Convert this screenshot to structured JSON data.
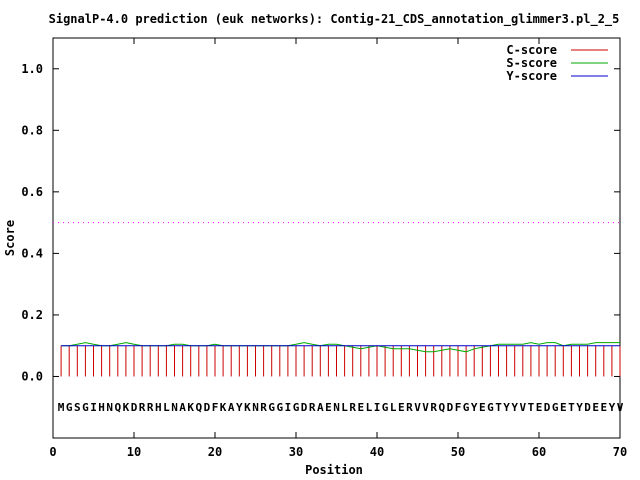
{
  "chart_data": {
    "type": "line",
    "title": "SignalP-4.0 prediction (euk networks): Contig-21_CDS_annotation_glimmer3.pl_2_5",
    "xlabel": "Position",
    "ylabel": "Score",
    "xlim": [
      0,
      70
    ],
    "ylim": [
      -0.2,
      1.1
    ],
    "xticks": [
      0,
      10,
      20,
      30,
      40,
      50,
      60,
      70
    ],
    "yticks": [
      0.0,
      0.2,
      0.4,
      0.6,
      0.8,
      1.0
    ],
    "ytick_labels": [
      "0.0",
      "0.2",
      "0.4",
      "0.6",
      "0.8",
      "1.0"
    ],
    "grid": false,
    "legend_position": "top-right",
    "threshold": {
      "value": 0.5,
      "color": "#ff00ff",
      "style": "dotted"
    },
    "sequence": "MGSGIHNQKDRRHLNAKQDFKAYKNRGGIGDRAENLRELIGLERVVRQDFGYEGTYYVTEDGETYDEEYV",
    "series": [
      {
        "name": "C-score",
        "color": "#cc0000",
        "style": "impulses",
        "x": [
          1,
          2,
          3,
          4,
          5,
          6,
          7,
          8,
          9,
          10,
          11,
          12,
          13,
          14,
          15,
          16,
          17,
          18,
          19,
          20,
          21,
          22,
          23,
          24,
          25,
          26,
          27,
          28,
          29,
          30,
          31,
          32,
          33,
          34,
          35,
          36,
          37,
          38,
          39,
          40,
          41,
          42,
          43,
          44,
          45,
          46,
          47,
          48,
          49,
          50,
          51,
          52,
          53,
          54,
          55,
          56,
          57,
          58,
          59,
          60,
          61,
          62,
          63,
          64,
          65,
          66,
          67,
          68,
          69,
          70
        ],
        "values": [
          0.1,
          0.1,
          0.1,
          0.1,
          0.1,
          0.1,
          0.1,
          0.1,
          0.1,
          0.1,
          0.1,
          0.1,
          0.1,
          0.1,
          0.1,
          0.1,
          0.1,
          0.1,
          0.1,
          0.1,
          0.1,
          0.1,
          0.1,
          0.1,
          0.1,
          0.1,
          0.1,
          0.1,
          0.1,
          0.1,
          0.1,
          0.1,
          0.1,
          0.1,
          0.1,
          0.1,
          0.1,
          0.1,
          0.1,
          0.1,
          0.1,
          0.1,
          0.1,
          0.1,
          0.1,
          0.1,
          0.1,
          0.1,
          0.1,
          0.1,
          0.1,
          0.1,
          0.1,
          0.1,
          0.1,
          0.1,
          0.1,
          0.1,
          0.1,
          0.1,
          0.1,
          0.1,
          0.1,
          0.1,
          0.1,
          0.1,
          0.1,
          0.1,
          0.1,
          0.1
        ]
      },
      {
        "name": "S-score",
        "color": "#00aa00",
        "style": "line",
        "x": [
          1,
          2,
          3,
          4,
          5,
          6,
          7,
          8,
          9,
          10,
          11,
          12,
          13,
          14,
          15,
          16,
          17,
          18,
          19,
          20,
          21,
          22,
          23,
          24,
          25,
          26,
          27,
          28,
          29,
          30,
          31,
          32,
          33,
          34,
          35,
          36,
          37,
          38,
          39,
          40,
          41,
          42,
          43,
          44,
          45,
          46,
          47,
          48,
          49,
          50,
          51,
          52,
          53,
          54,
          55,
          56,
          57,
          58,
          59,
          60,
          61,
          62,
          63,
          64,
          65,
          66,
          67,
          68,
          69,
          70
        ],
        "values": [
          0.1,
          0.1,
          0.105,
          0.11,
          0.105,
          0.1,
          0.1,
          0.105,
          0.11,
          0.105,
          0.1,
          0.1,
          0.1,
          0.1,
          0.105,
          0.105,
          0.1,
          0.1,
          0.1,
          0.105,
          0.1,
          0.1,
          0.1,
          0.1,
          0.1,
          0.1,
          0.1,
          0.1,
          0.1,
          0.105,
          0.11,
          0.105,
          0.1,
          0.105,
          0.105,
          0.1,
          0.095,
          0.09,
          0.095,
          0.1,
          0.095,
          0.09,
          0.09,
          0.09,
          0.085,
          0.08,
          0.08,
          0.085,
          0.09,
          0.085,
          0.08,
          0.09,
          0.095,
          0.1,
          0.105,
          0.105,
          0.105,
          0.105,
          0.11,
          0.105,
          0.11,
          0.11,
          0.1,
          0.105,
          0.105,
          0.105,
          0.11,
          0.11,
          0.11,
          0.11
        ]
      },
      {
        "name": "Y-score",
        "color": "#0000cc",
        "style": "line",
        "x": [
          1,
          2,
          3,
          4,
          5,
          6,
          7,
          8,
          9,
          10,
          11,
          12,
          13,
          14,
          15,
          16,
          17,
          18,
          19,
          20,
          21,
          22,
          23,
          24,
          25,
          26,
          27,
          28,
          29,
          30,
          31,
          32,
          33,
          34,
          35,
          36,
          37,
          38,
          39,
          40,
          41,
          42,
          43,
          44,
          45,
          46,
          47,
          48,
          49,
          50,
          51,
          52,
          53,
          54,
          55,
          56,
          57,
          58,
          59,
          60,
          61,
          62,
          63,
          64,
          65,
          66,
          67,
          68,
          69,
          70
        ],
        "values": [
          0.1,
          0.1,
          0.1,
          0.1,
          0.1,
          0.1,
          0.1,
          0.1,
          0.1,
          0.1,
          0.1,
          0.1,
          0.1,
          0.1,
          0.1,
          0.1,
          0.1,
          0.1,
          0.1,
          0.1,
          0.1,
          0.1,
          0.1,
          0.1,
          0.1,
          0.1,
          0.1,
          0.1,
          0.1,
          0.1,
          0.1,
          0.1,
          0.1,
          0.1,
          0.1,
          0.1,
          0.1,
          0.1,
          0.1,
          0.1,
          0.1,
          0.1,
          0.1,
          0.1,
          0.1,
          0.1,
          0.1,
          0.1,
          0.1,
          0.1,
          0.1,
          0.1,
          0.1,
          0.1,
          0.1,
          0.1,
          0.1,
          0.1,
          0.1,
          0.1,
          0.1,
          0.1,
          0.1,
          0.1,
          0.1,
          0.1,
          0.1,
          0.1,
          0.1,
          0.1
        ]
      }
    ]
  }
}
